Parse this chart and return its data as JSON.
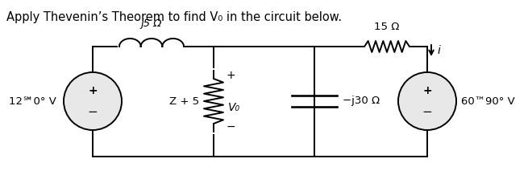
{
  "title": "Apply Thevenin’s Theorem to find V₀ in the circuit below.",
  "title_fontsize": 10.5,
  "bg_color": "#ffffff",
  "line_color": "#000000",
  "line_width": 1.4,
  "fig_width": 6.55,
  "fig_height": 2.13,
  "dpi": 100,
  "inductor_label": "j5 Ω",
  "resistor_label": "15 Ω",
  "controlled_label": "Z + 5",
  "cap_label": "−j30 Ω",
  "vsource1_label": "12℠0° V",
  "vsource2_label": "60™90° V",
  "vo_label": "V₀",
  "current_label": "i"
}
